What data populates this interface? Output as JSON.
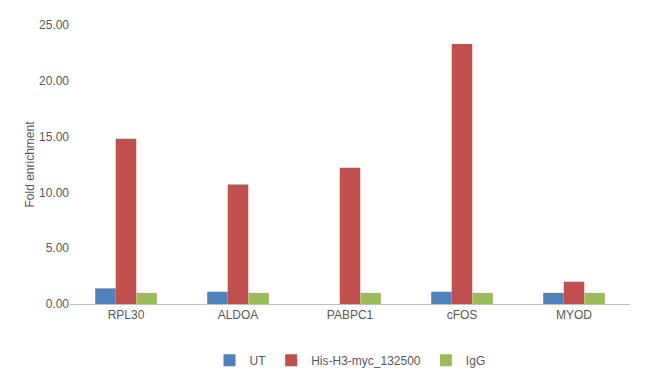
{
  "chart_data": {
    "type": "bar",
    "categories": [
      "RPL30",
      "ALDOA",
      "PABPC1",
      "cFOS",
      "MYOD"
    ],
    "series": [
      {
        "name": "UT",
        "color": "#4f81bd",
        "values": [
          1.4,
          1.1,
          0,
          1.1,
          1.0
        ]
      },
      {
        "name": "His-H3-myc_132500",
        "color": "#c0504d",
        "values": [
          14.8,
          10.7,
          12.2,
          23.3,
          2.0
        ]
      },
      {
        "name": "IgG",
        "color": "#9bbb59",
        "values": [
          1.0,
          1.0,
          1.0,
          1.0,
          1.0
        ]
      }
    ],
    "y_label": "Fold enrichment",
    "ylim": [
      0,
      25
    ],
    "yticks": [
      {
        "value": 0,
        "label": "0.00"
      },
      {
        "value": 5,
        "label": "5.00"
      },
      {
        "value": 10,
        "label": "10.00"
      },
      {
        "value": 15,
        "label": "15.00"
      },
      {
        "value": 20,
        "label": "20.00"
      },
      {
        "value": 25,
        "label": "25.00"
      }
    ],
    "grid": false,
    "legend": "bottom"
  }
}
